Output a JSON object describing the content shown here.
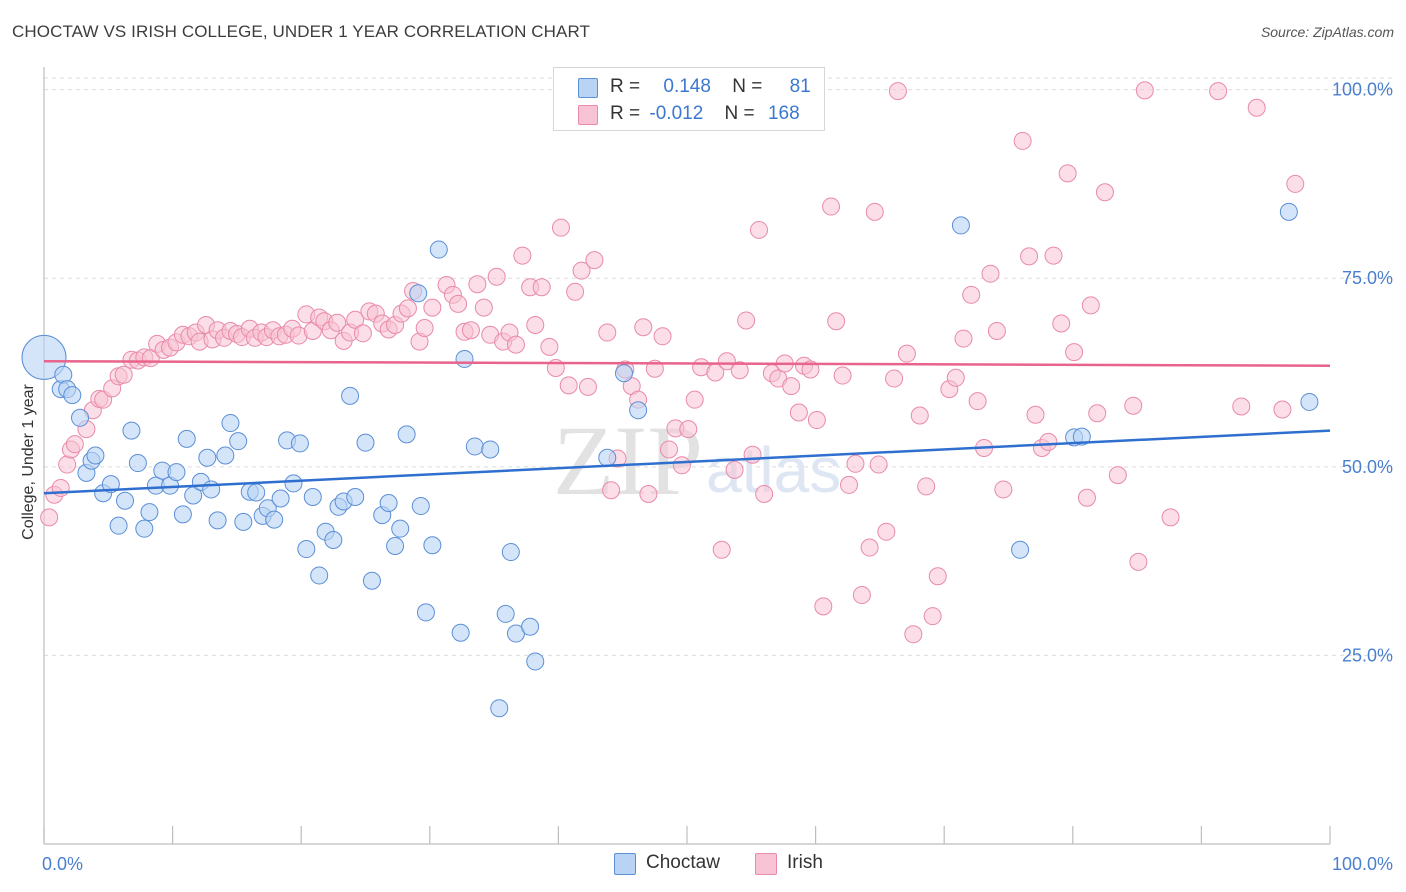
{
  "header": {
    "title": "CHOCTAW VS IRISH COLLEGE, UNDER 1 YEAR CORRELATION CHART",
    "source": "Source: ZipAtlas.com"
  },
  "legend": {
    "rows": [
      {
        "r_label": "R =",
        "r_value": "0.148",
        "n_label": "N =",
        "n_value": "81"
      },
      {
        "r_label": "R =",
        "r_value": "-0.012",
        "n_label": "N =",
        "n_value": "168"
      }
    ]
  },
  "colors": {
    "choctaw_fill": "#b9d3f5",
    "choctaw_stroke": "#5b8fd6",
    "choctaw_line": "#2f6fcf",
    "irish_fill": "#f8c3d4",
    "irish_stroke": "#e98aa9",
    "irish_line": "#e8648d",
    "tick_text": "#4a7fd0",
    "grid": "#dcdcdc"
  },
  "chart_data": {
    "type": "scatter",
    "title": "CHOCTAW VS IRISH COLLEGE, UNDER 1 YEAR CORRELATION CHART",
    "xlabel": "",
    "ylabel": "College, Under 1 year",
    "xlim": [
      0,
      100
    ],
    "ylim": [
      0,
      103
    ],
    "x_tick_labels": [
      "0.0%",
      "100.0%"
    ],
    "y_ticks": [
      25,
      50,
      75,
      100
    ],
    "y_tick_labels": [
      "25.0%",
      "50.0%",
      "75.0%",
      "100.0%"
    ],
    "grid": true,
    "legend_position": "top-center",
    "watermark": "ZIPatlas",
    "series": [
      {
        "name": "Choctaw",
        "R": 0.148,
        "N": 81,
        "trend": [
          [
            0,
            46.5
          ],
          [
            100,
            54.8
          ]
        ],
        "points": [
          [
            0,
            64.5
          ],
          [
            1.3,
            60.3
          ],
          [
            1.5,
            62.2
          ],
          [
            1.8,
            60.3
          ],
          [
            2.2,
            59.5
          ],
          [
            2.8,
            56.5
          ],
          [
            3.3,
            49.2
          ],
          [
            3.7,
            50.8
          ],
          [
            4.0,
            51.5
          ],
          [
            4.6,
            46.5
          ],
          [
            5.2,
            47.7
          ],
          [
            5.8,
            42.2
          ],
          [
            6.3,
            45.5
          ],
          [
            6.8,
            54.8
          ],
          [
            7.3,
            50.5
          ],
          [
            7.8,
            41.8
          ],
          [
            8.2,
            44.0
          ],
          [
            8.7,
            47.5
          ],
          [
            9.2,
            49.5
          ],
          [
            9.8,
            47.5
          ],
          [
            10.3,
            49.3
          ],
          [
            10.8,
            43.7
          ],
          [
            11.1,
            53.7
          ],
          [
            11.6,
            46.2
          ],
          [
            12.2,
            48.0
          ],
          [
            12.7,
            51.2
          ],
          [
            13.0,
            47.0
          ],
          [
            13.5,
            42.9
          ],
          [
            14.1,
            51.5
          ],
          [
            14.5,
            55.8
          ],
          [
            15.1,
            53.4
          ],
          [
            15.5,
            42.7
          ],
          [
            16.0,
            46.7
          ],
          [
            16.5,
            46.6
          ],
          [
            17.0,
            43.5
          ],
          [
            17.4,
            44.5
          ],
          [
            17.9,
            43.0
          ],
          [
            18.4,
            45.8
          ],
          [
            18.9,
            53.5
          ],
          [
            19.4,
            47.8
          ],
          [
            19.9,
            53.1
          ],
          [
            20.4,
            39.1
          ],
          [
            20.9,
            46.0
          ],
          [
            21.4,
            35.6
          ],
          [
            21.9,
            41.4
          ],
          [
            22.5,
            40.3
          ],
          [
            22.9,
            44.7
          ],
          [
            23.3,
            45.4
          ],
          [
            23.8,
            59.4
          ],
          [
            24.2,
            46.0
          ],
          [
            25.0,
            53.2
          ],
          [
            25.5,
            34.9
          ],
          [
            26.3,
            43.6
          ],
          [
            26.8,
            45.2
          ],
          [
            27.3,
            39.5
          ],
          [
            27.7,
            41.8
          ],
          [
            28.2,
            54.3
          ],
          [
            29.3,
            44.8
          ],
          [
            29.7,
            30.7
          ],
          [
            30.2,
            39.6
          ],
          [
            30.7,
            78.8
          ],
          [
            32.4,
            28.0
          ],
          [
            32.7,
            64.3
          ],
          [
            33.5,
            52.7
          ],
          [
            34.7,
            52.3
          ],
          [
            35.4,
            18.0
          ],
          [
            35.9,
            30.5
          ],
          [
            36.3,
            38.7
          ],
          [
            36.7,
            27.9
          ],
          [
            37.8,
            28.8
          ],
          [
            38.2,
            24.2
          ],
          [
            29.1,
            73.0
          ],
          [
            43.8,
            51.2
          ],
          [
            45.1,
            62.4
          ],
          [
            46.2,
            57.5
          ],
          [
            71.3,
            82.0
          ],
          [
            75.9,
            39.0
          ],
          [
            80.1,
            53.9
          ],
          [
            80.7,
            54.0
          ],
          [
            96.8,
            83.8
          ],
          [
            98.4,
            58.6
          ]
        ]
      },
      {
        "name": "Irish",
        "R": -0.012,
        "N": 168,
        "trend": [
          [
            0,
            64.0
          ],
          [
            100,
            63.4
          ]
        ],
        "points": [
          [
            0.4,
            43.3
          ],
          [
            0.8,
            46.3
          ],
          [
            1.3,
            47.2
          ],
          [
            1.8,
            50.3
          ],
          [
            2.1,
            52.3
          ],
          [
            2.4,
            53.0
          ],
          [
            3.3,
            55.0
          ],
          [
            3.8,
            57.5
          ],
          [
            4.3,
            59.0
          ],
          [
            4.6,
            58.9
          ],
          [
            5.3,
            60.4
          ],
          [
            5.8,
            62.0
          ],
          [
            6.2,
            62.2
          ],
          [
            6.8,
            64.2
          ],
          [
            7.3,
            64.1
          ],
          [
            7.8,
            64.5
          ],
          [
            8.3,
            64.4
          ],
          [
            8.8,
            66.3
          ],
          [
            9.3,
            65.5
          ],
          [
            9.8,
            65.8
          ],
          [
            10.3,
            66.5
          ],
          [
            10.8,
            67.5
          ],
          [
            11.3,
            67.3
          ],
          [
            11.8,
            67.8
          ],
          [
            12.1,
            66.6
          ],
          [
            12.6,
            68.8
          ],
          [
            13.1,
            66.9
          ],
          [
            13.5,
            68.1
          ],
          [
            14.0,
            67.1
          ],
          [
            14.5,
            68.0
          ],
          [
            15.0,
            67.6
          ],
          [
            15.4,
            67.2
          ],
          [
            16.0,
            68.3
          ],
          [
            16.4,
            67.1
          ],
          [
            16.9,
            67.8
          ],
          [
            17.3,
            67.2
          ],
          [
            17.8,
            68.1
          ],
          [
            18.3,
            67.3
          ],
          [
            18.8,
            67.5
          ],
          [
            19.3,
            68.3
          ],
          [
            19.8,
            67.4
          ],
          [
            20.4,
            70.2
          ],
          [
            20.9,
            68.0
          ],
          [
            21.4,
            69.8
          ],
          [
            21.8,
            69.3
          ],
          [
            22.3,
            68.1
          ],
          [
            22.8,
            69.1
          ],
          [
            23.3,
            66.7
          ],
          [
            23.8,
            67.8
          ],
          [
            24.2,
            69.5
          ],
          [
            24.8,
            67.7
          ],
          [
            25.3,
            70.6
          ],
          [
            25.8,
            70.3
          ],
          [
            26.3,
            69.0
          ],
          [
            26.8,
            68.2
          ],
          [
            27.3,
            68.8
          ],
          [
            27.8,
            70.3
          ],
          [
            28.3,
            71.0
          ],
          [
            28.7,
            73.3
          ],
          [
            29.2,
            66.6
          ],
          [
            29.6,
            68.4
          ],
          [
            30.2,
            71.1
          ],
          [
            31.3,
            74.1
          ],
          [
            31.8,
            72.8
          ],
          [
            32.2,
            71.6
          ],
          [
            32.7,
            67.9
          ],
          [
            33.2,
            68.1
          ],
          [
            33.7,
            74.2
          ],
          [
            34.2,
            71.1
          ],
          [
            34.7,
            67.5
          ],
          [
            35.2,
            75.2
          ],
          [
            35.7,
            66.6
          ],
          [
            36.2,
            67.8
          ],
          [
            36.7,
            66.2
          ],
          [
            37.2,
            78.0
          ],
          [
            37.8,
            73.8
          ],
          [
            38.2,
            68.8
          ],
          [
            38.7,
            73.8
          ],
          [
            39.3,
            65.9
          ],
          [
            39.8,
            63.1
          ],
          [
            40.2,
            81.7
          ],
          [
            40.8,
            60.8
          ],
          [
            41.3,
            73.2
          ],
          [
            41.8,
            76.0
          ],
          [
            42.3,
            60.6
          ],
          [
            42.8,
            77.4
          ],
          [
            43.8,
            67.8
          ],
          [
            44.1,
            46.9
          ],
          [
            44.6,
            51.1
          ],
          [
            45.2,
            62.9
          ],
          [
            45.7,
            60.7
          ],
          [
            46.2,
            58.9
          ],
          [
            46.6,
            68.5
          ],
          [
            47.0,
            46.4
          ],
          [
            47.5,
            63.0
          ],
          [
            48.1,
            67.3
          ],
          [
            48.6,
            52.3
          ],
          [
            49.1,
            55.1
          ],
          [
            49.6,
            50.2
          ],
          [
            50.1,
            55.0
          ],
          [
            50.6,
            58.9
          ],
          [
            51.1,
            63.2
          ],
          [
            52.7,
            39.0
          ],
          [
            52.2,
            62.5
          ],
          [
            53.1,
            64.0
          ],
          [
            53.7,
            49.6
          ],
          [
            54.1,
            62.8
          ],
          [
            54.6,
            69.4
          ],
          [
            55.1,
            51.6
          ],
          [
            55.6,
            81.4
          ],
          [
            56.0,
            46.4
          ],
          [
            56.6,
            62.4
          ],
          [
            57.1,
            61.7
          ],
          [
            57.6,
            63.7
          ],
          [
            58.1,
            60.7
          ],
          [
            58.7,
            57.2
          ],
          [
            59.1,
            63.4
          ],
          [
            59.6,
            62.9
          ],
          [
            60.1,
            56.2
          ],
          [
            60.6,
            31.5
          ],
          [
            61.2,
            84.5
          ],
          [
            61.6,
            69.3
          ],
          [
            62.1,
            62.1
          ],
          [
            62.6,
            47.6
          ],
          [
            63.1,
            50.4
          ],
          [
            63.6,
            33.0
          ],
          [
            64.2,
            39.3
          ],
          [
            64.6,
            83.8
          ],
          [
            64.9,
            50.3
          ],
          [
            65.5,
            41.4
          ],
          [
            66.1,
            61.7
          ],
          [
            66.4,
            99.8
          ],
          [
            67.1,
            65.0
          ],
          [
            67.6,
            27.8
          ],
          [
            68.1,
            56.8
          ],
          [
            68.6,
            47.4
          ],
          [
            69.1,
            30.2
          ],
          [
            69.5,
            35.5
          ],
          [
            70.4,
            60.3
          ],
          [
            70.9,
            61.8
          ],
          [
            71.5,
            67.0
          ],
          [
            72.1,
            72.8
          ],
          [
            72.6,
            58.7
          ],
          [
            73.1,
            52.5
          ],
          [
            73.6,
            75.6
          ],
          [
            74.1,
            68.0
          ],
          [
            74.6,
            47.0
          ],
          [
            76.1,
            93.2
          ],
          [
            76.6,
            77.9
          ],
          [
            77.1,
            56.9
          ],
          [
            77.6,
            52.5
          ],
          [
            78.1,
            53.3
          ],
          [
            78.5,
            78.0
          ],
          [
            79.1,
            69.0
          ],
          [
            79.6,
            88.9
          ],
          [
            80.1,
            65.2
          ],
          [
            81.1,
            45.9
          ],
          [
            81.4,
            71.4
          ],
          [
            81.9,
            57.1
          ],
          [
            82.5,
            86.4
          ],
          [
            83.5,
            48.9
          ],
          [
            84.7,
            58.1
          ],
          [
            85.1,
            37.4
          ],
          [
            85.6,
            99.9
          ],
          [
            87.6,
            43.3
          ],
          [
            91.3,
            99.8
          ],
          [
            93.1,
            58.0
          ],
          [
            94.3,
            97.6
          ],
          [
            97.3,
            87.5
          ],
          [
            96.3,
            57.6
          ]
        ]
      }
    ]
  }
}
